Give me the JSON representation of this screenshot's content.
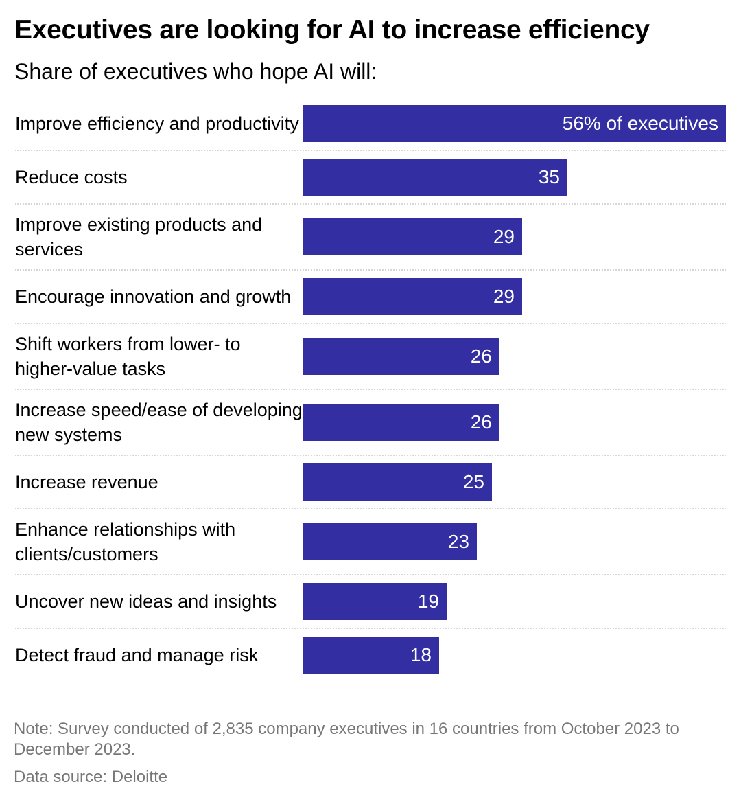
{
  "chart_data": {
    "type": "bar",
    "orientation": "horizontal",
    "title": "Executives are looking for AI to increase efficiency",
    "subtitle": "Share of executives who hope AI will:",
    "categories": [
      "Improve efficiency and productivity",
      "Reduce costs",
      "Improve existing products and services",
      "Encourage innovation and growth",
      "Shift workers from lower- to higher-value tasks",
      "Increase speed/ease of developing new systems",
      "Increase revenue",
      "Enhance relationships with clients/customers",
      "Uncover new ideas and insights",
      "Detect fraud and manage risk"
    ],
    "values": [
      56,
      35,
      29,
      29,
      26,
      26,
      25,
      23,
      19,
      18
    ],
    "data_labels": [
      "56% of executives",
      "35",
      "29",
      "29",
      "26",
      "26",
      "25",
      "23",
      "19",
      "18"
    ],
    "xlim": [
      0,
      56
    ],
    "bar_color": "#332ea1",
    "grid": false,
    "note": "Note: Survey conducted of 2,835 company executives in 16 countries from October 2023 to December 2023.",
    "source": "Data source: Deloitte"
  }
}
